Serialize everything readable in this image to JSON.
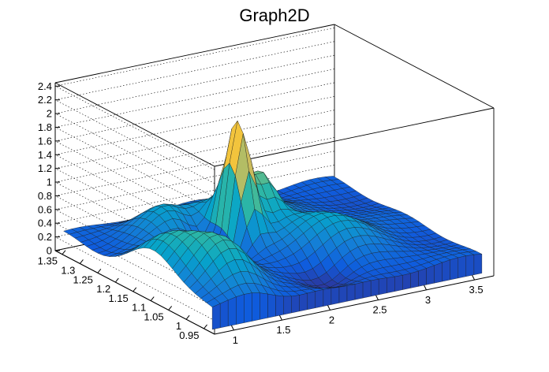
{
  "chart_data": {
    "type": "surface3d",
    "title": "Graph2D",
    "x_ticks": [
      "1",
      "1.5",
      "2",
      "2.5",
      "3",
      "3.5"
    ],
    "x_tick_values": [
      1,
      1.5,
      2,
      2.5,
      3,
      3.5
    ],
    "xlim": [
      0.8,
      3.7
    ],
    "y_ticks": [
      "0.95",
      "1",
      "1.05",
      "1.1",
      "1.15",
      "1.2",
      "1.25",
      "1.3",
      "1.35"
    ],
    "y_tick_values": [
      0.95,
      1.0,
      1.05,
      1.1,
      1.15,
      1.2,
      1.25,
      1.3,
      1.35
    ],
    "ylim": [
      0.92,
      1.37
    ],
    "z_ticks": [
      "0",
      "0.2",
      "0.4",
      "0.6",
      "0.8",
      "1",
      "1.2",
      "1.4",
      "1.6",
      "1.8",
      "2",
      "2.2",
      "2.4"
    ],
    "z_tick_values": [
      0,
      0.2,
      0.4,
      0.6,
      0.8,
      1.0,
      1.2,
      1.4,
      1.6,
      1.8,
      2.0,
      2.2,
      2.4
    ],
    "zlim": [
      0,
      2.45
    ],
    "grid": true,
    "palette": [
      "#352a87",
      "#0f5cdd",
      "#1481d6",
      "#06a4ca",
      "#2eb7a4",
      "#87bf77",
      "#d1bb59",
      "#fec832",
      "#f9fb0e"
    ],
    "peak": {
      "x": 2.0,
      "y": 1.18,
      "z": 2.0
    }
  }
}
